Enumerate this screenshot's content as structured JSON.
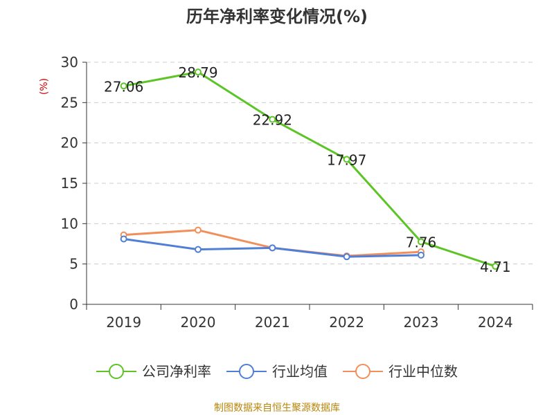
{
  "chart_data": {
    "type": "line",
    "title": "历年净利率变化情况(%)",
    "ylabel": "(%)",
    "xlabel": "",
    "categories": [
      "2019",
      "2020",
      "2021",
      "2022",
      "2023",
      "2024"
    ],
    "ylim": [
      0,
      30
    ],
    "yticks": [
      0,
      5,
      10,
      15,
      20,
      25,
      30
    ],
    "grid": true,
    "legend_position": "bottom",
    "series": [
      {
        "name": "公司净利率",
        "color": "#5cc424",
        "values": [
          27.06,
          28.79,
          22.92,
          17.97,
          7.76,
          4.71
        ],
        "data_labels": [
          "27.06",
          "28.79",
          "22.92",
          "17.97",
          "7.76",
          "4.71"
        ]
      },
      {
        "name": "行业均值",
        "color": "#4f7fd6",
        "values": [
          8.1,
          6.8,
          7.0,
          5.9,
          6.1,
          null
        ]
      },
      {
        "name": "行业中位数",
        "color": "#f28e5a",
        "values": [
          8.6,
          9.2,
          7.0,
          6.0,
          6.5,
          null
        ]
      }
    ]
  },
  "source": "制图数据来自恒生聚源数据库"
}
